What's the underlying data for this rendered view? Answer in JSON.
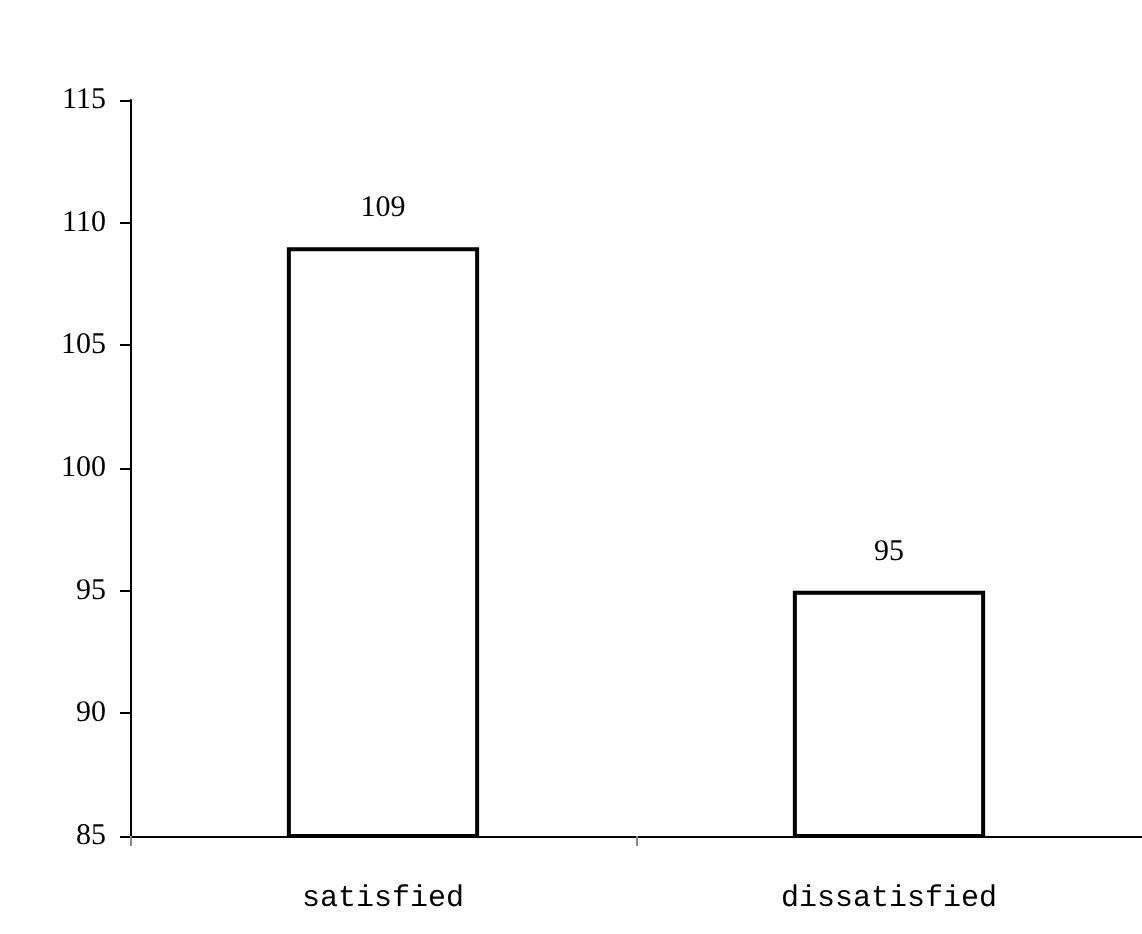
{
  "chart_data": {
    "type": "bar",
    "categories": [
      "satisfied",
      "dissatisfied"
    ],
    "values": [
      109,
      95
    ],
    "color": "#ffffff",
    "ylim": [
      85,
      115
    ],
    "yticks": [
      85,
      90,
      95,
      100,
      105,
      110,
      115
    ],
    "grid": false,
    "data_labels": true
  }
}
